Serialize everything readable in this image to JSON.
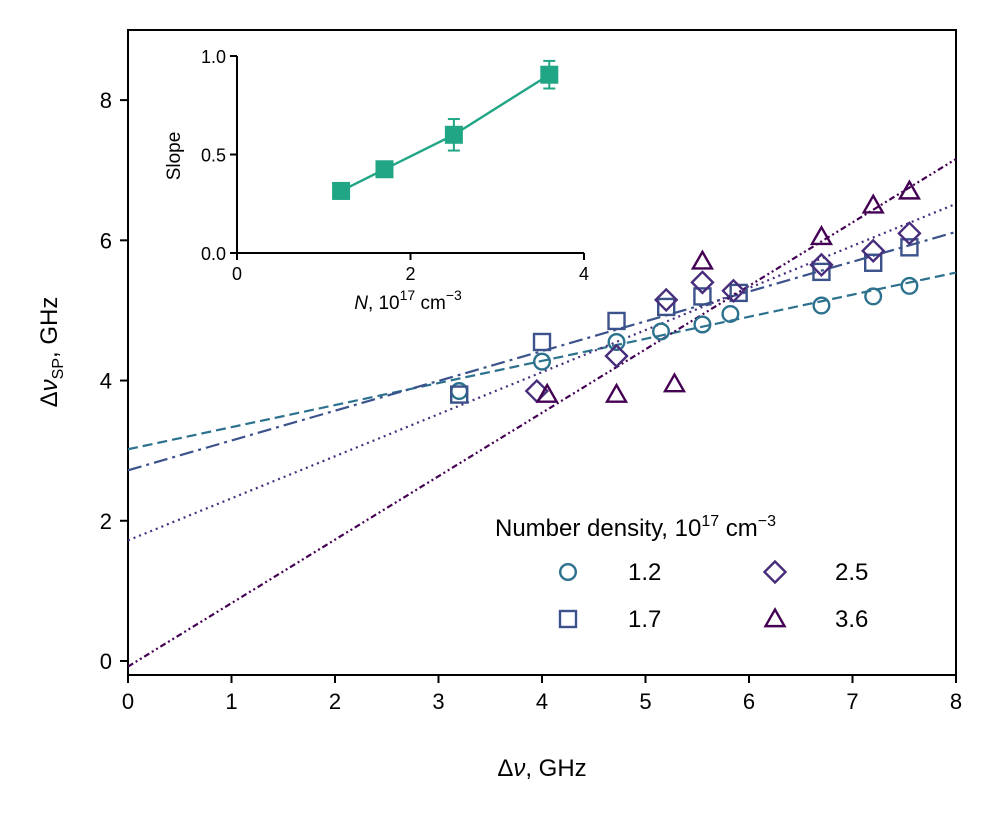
{
  "chart_data": {
    "main": {
      "type": "scatter",
      "xlabel": {
        "main": "Δ",
        "ital": "ν",
        "rest": ", GHz"
      },
      "ylabel": {
        "main": "Δ",
        "ital": "ν",
        "sub": "SP",
        "rest": ", GHz"
      },
      "xlim": [
        0,
        8
      ],
      "ylim": [
        -0.2,
        9.0
      ],
      "xticks": [
        "0",
        "1",
        "2",
        "3",
        "4",
        "5",
        "6",
        "7",
        "8"
      ],
      "yticks": [
        "0",
        "2",
        "4",
        "6",
        "8"
      ],
      "legend": {
        "title": "Number density,  10",
        "title_sup": "17",
        "title_unit": " cm",
        "title_unit_sup": "−3",
        "placement": "lower-right"
      },
      "series": [
        {
          "name": "1.2",
          "marker": "circle",
          "color": "#2c728e",
          "dash": "dashed",
          "fit": {
            "slope": 0.315,
            "intercept": 3.02
          },
          "points": [
            [
              3.2,
              3.85
            ],
            [
              4.0,
              4.27
            ],
            [
              4.72,
              4.55
            ],
            [
              5.15,
              4.7
            ],
            [
              5.55,
              4.8
            ],
            [
              5.82,
              4.95
            ],
            [
              6.7,
              5.07
            ],
            [
              7.2,
              5.2
            ],
            [
              7.55,
              5.35
            ]
          ]
        },
        {
          "name": "1.7",
          "marker": "square",
          "color": "#3b528b",
          "dash": "dashdot",
          "fit": {
            "slope": 0.425,
            "intercept": 2.72
          },
          "points": [
            [
              3.2,
              3.8
            ],
            [
              4.0,
              4.55
            ],
            [
              4.72,
              4.85
            ],
            [
              5.2,
              5.05
            ],
            [
              5.55,
              5.2
            ],
            [
              5.9,
              5.25
            ],
            [
              6.7,
              5.55
            ],
            [
              7.2,
              5.68
            ],
            [
              7.55,
              5.9
            ]
          ]
        },
        {
          "name": "2.5",
          "marker": "diamond",
          "color": "#472d7b",
          "dash": "dotted",
          "fit": {
            "slope": 0.6,
            "intercept": 1.72
          },
          "points": [
            [
              3.95,
              3.85
            ],
            [
              4.72,
              4.35
            ],
            [
              5.2,
              5.15
            ],
            [
              5.55,
              5.4
            ],
            [
              5.85,
              5.28
            ],
            [
              6.7,
              5.65
            ],
            [
              7.2,
              5.85
            ],
            [
              7.55,
              6.1
            ]
          ]
        },
        {
          "name": "3.6",
          "marker": "triangle",
          "color": "#440154",
          "dash": "dashdotdot",
          "fit": {
            "slope": 0.905,
            "intercept": -0.08
          },
          "points": [
            [
              4.05,
              3.8
            ],
            [
              4.72,
              3.8
            ],
            [
              5.28,
              3.95
            ],
            [
              5.55,
              5.7
            ],
            [
              6.7,
              6.05
            ],
            [
              7.2,
              6.5
            ],
            [
              7.55,
              6.7
            ]
          ]
        }
      ]
    },
    "inset": {
      "type": "line",
      "xlabel": {
        "ital": "N",
        "rest": ", 10",
        "sup": "17",
        "unit": " cm",
        "unit_sup": "−3"
      },
      "ylabel": "Slope",
      "xlim": [
        0,
        4
      ],
      "ylim": [
        0.0,
        1.0
      ],
      "xticks": [
        "0",
        "2",
        "4"
      ],
      "yticks": [
        "0.0",
        "0.5",
        "1.0"
      ],
      "color": "#21a685",
      "points": [
        {
          "x": 1.2,
          "y": 0.315,
          "err": 0.0
        },
        {
          "x": 1.7,
          "y": 0.425,
          "err": 0.0
        },
        {
          "x": 2.5,
          "y": 0.6,
          "err": 0.08
        },
        {
          "x": 3.6,
          "y": 0.905,
          "err": 0.07
        }
      ]
    }
  }
}
